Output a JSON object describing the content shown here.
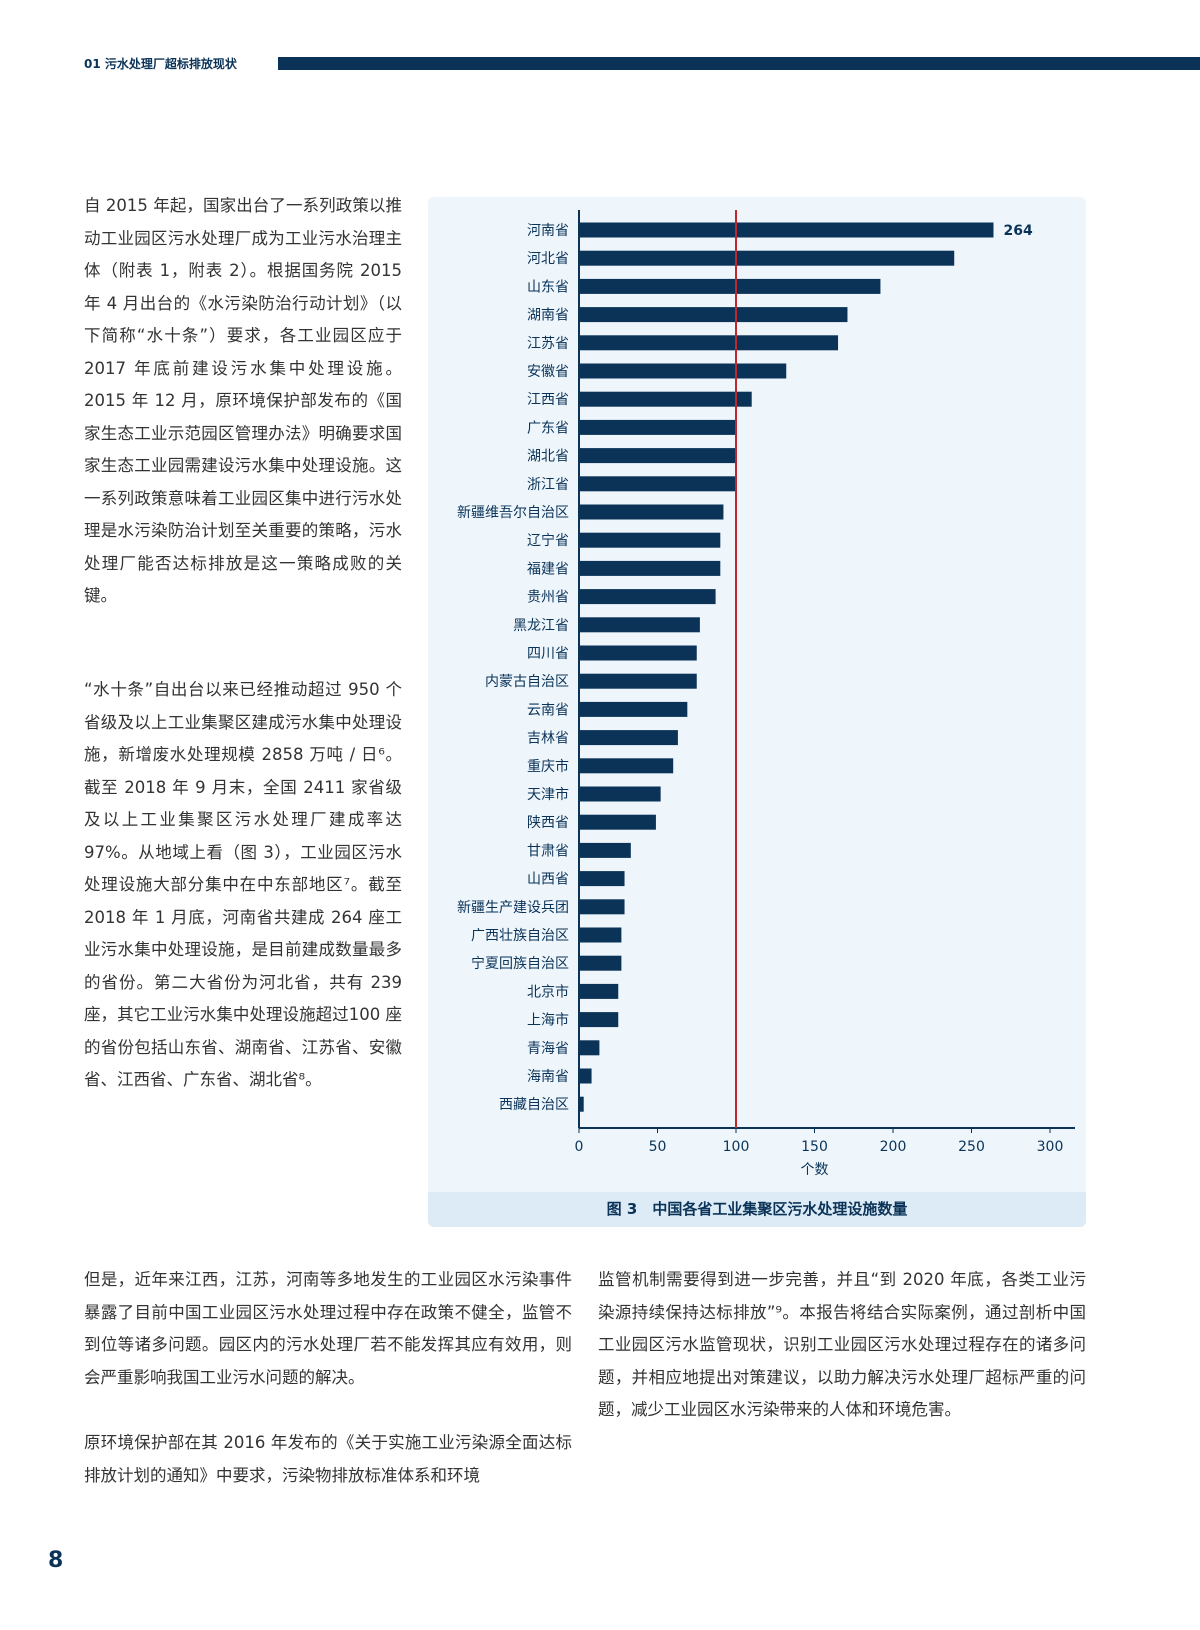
{
  "header": {
    "section": "01 污水处理厂超标排放现状"
  },
  "left_column": {
    "p1": "自 2015 年起，国家出台了一系列政策以推动工业园区污水处理厂成为工业污水治理主体（附表 1，附表 2）。根据国务院 2015 年 4 月出台的《水污染防治行动计划》（以下简称“水十条”）要求，各工业园区应于 2017 年底前建设污水集中处理设施。2015 年 12 月，原环境保护部发布的《国家生态工业示范园区管理办法》明确要求国家生态工业园需建设污水集中处理设施。这一系列政策意味着工业园区集中进行污水处理是水污染防治计划至关重要的策略，污水处理厂能否达标排放是这一策略成败的关键。",
    "p2": "“水十条”自出台以来已经推动超过 950 个省级及以上工业集聚区建成污水集中处理设施，新增废水处理规模 2858 万吨 / 日⁶。截至 2018 年 9 月末，全国 2411 家省级及以上工业集聚区污水处理厂建成率达 97%。从地域上看（图 3），工业园区污水处理设施大部分集中在中东部地区⁷。截至 2018 年 1 月底，河南省共建成 264 座工业污水集中处理设施，是目前建成数量最多的省份。第二大省份为河北省，共有 239 座，其它工业污水集中处理设施超过100 座的省份包括山东省、湖南省、江苏省、安徽省、江西省、广东省、湖北省⁸。"
  },
  "bottom": {
    "b1": "但是，近年来江西，江苏，河南等多地发生的工业园区水污染事件暴露了目前中国工业园区污水处理过程中存在政策不健全，监管不到位等诸多问题。园区内的污水处理厂若不能发挥其应有效用，则会严重影响我国工业污水问题的解决。",
    "b2": "原环境保护部在其 2016 年发布的《关于实施工业污染源全面达标排放计划的通知》中要求，污染物排放标准体系和环境",
    "b3": "监管机制需要得到进一步完善，并且“到 2020 年底，各类工业污染源持续保持达标排放”⁹。本报告将结合实际案例，通过剖析中国工业园区污水监管现状，识别工业园区污水处理过程存在的诸多问题，并相应地提出对策建议，以助力解决污水处理厂超标严重的问题，减少工业园区水污染带来的人体和环境危害。"
  },
  "page_number": "8",
  "chart_data": {
    "type": "bar",
    "orientation": "horizontal",
    "title": "图 3　中国各省工业集聚区污水处理设施数量",
    "xlabel": "个数",
    "xlim": [
      0,
      300
    ],
    "xticks": [
      "0",
      "50",
      "100",
      "150",
      "200",
      "250",
      "300"
    ],
    "reference_line": 100,
    "categories": [
      "河南省",
      "河北省",
      "山东省",
      "湖南省",
      "江苏省",
      "安徽省",
      "江西省",
      "广东省",
      "湖北省",
      "浙江省",
      "新疆维吾尔自治区",
      "辽宁省",
      "福建省",
      "贵州省",
      "黑龙江省",
      "四川省",
      "内蒙古自治区",
      "云南省",
      "吉林省",
      "重庆市",
      "天津市",
      "陕西省",
      "甘肃省",
      "山西省",
      "新疆生产建设兵团",
      "广西壮族自治区",
      "宁夏回族自治区",
      "北京市",
      "上海市",
      "青海省",
      "海南省",
      "西藏自治区"
    ],
    "values": [
      264,
      239,
      192,
      171,
      165,
      132,
      110,
      100,
      100,
      100,
      92,
      90,
      90,
      87,
      77,
      75,
      75,
      69,
      63,
      60,
      52,
      49,
      33,
      29,
      29,
      27,
      27,
      25,
      25,
      13,
      8,
      3
    ],
    "data_labels": {
      "0": "264"
    },
    "colors": {
      "bar": "#0b3358",
      "reference": "#c0272d",
      "background": "#eef6fc"
    }
  }
}
